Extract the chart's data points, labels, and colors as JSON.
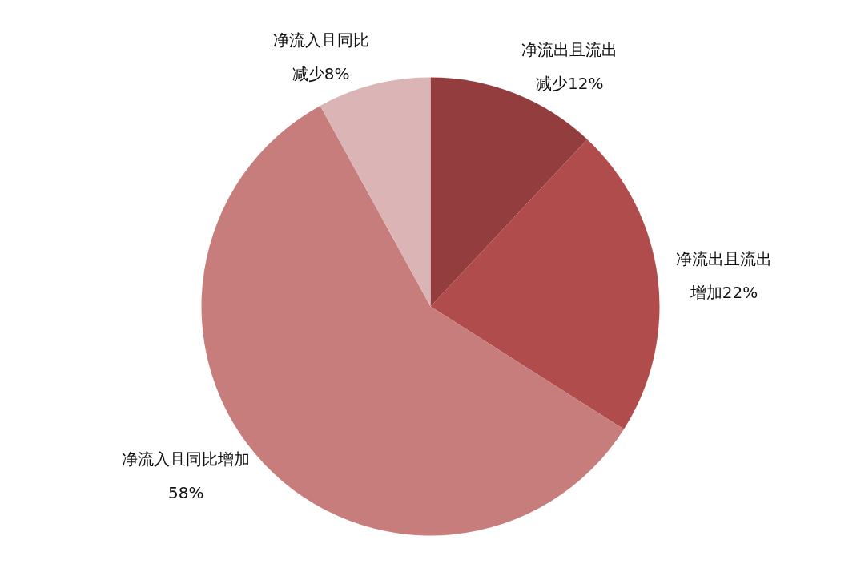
{
  "chart_data": {
    "type": "pie",
    "categories": [
      "净流出且流出减少",
      "净流出且流出增加",
      "净流入且同比增加",
      "净流入且同比减少"
    ],
    "values": [
      12,
      22,
      58,
      8
    ],
    "value_labels": [
      "12%",
      "22%",
      "58%",
      "8%"
    ],
    "colors": [
      "#943d3e",
      "#b04c4b",
      "#c77d7b",
      "#dbb4b5"
    ],
    "legend": false
  }
}
